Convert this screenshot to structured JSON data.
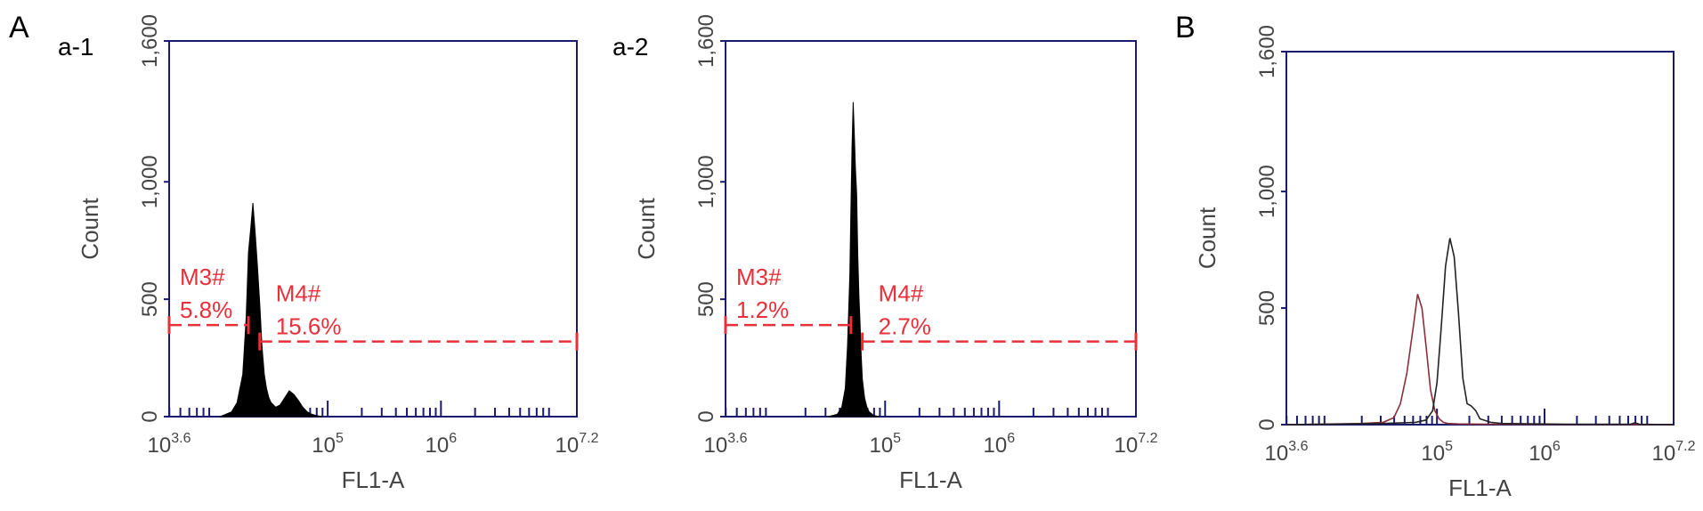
{
  "figure": {
    "panel_labels": [
      "A",
      "B"
    ],
    "colors": {
      "axis": "#1a1a6e",
      "gate": "#e8303a",
      "fill": "#000000",
      "curve_b_1": "#8a2f3a",
      "curve_b_2": "#222222"
    }
  },
  "chart_data": [
    {
      "type": "area",
      "panel_label": "a-1",
      "xlabel": "FL1-A",
      "ylabel": "Count",
      "x_scale": "log10",
      "xlim": [
        3.6,
        7.2
      ],
      "ylim": [
        0,
        1600
      ],
      "yticks": [
        0,
        500,
        1000,
        1600
      ],
      "ytick_labels": [
        "0",
        "500",
        "1,000",
        "1,600"
      ],
      "xticks": [
        3.6,
        5,
        6,
        7.2
      ],
      "xtick_labels": [
        {
          "base": "10",
          "exp": "3.6"
        },
        {
          "base": "10",
          "exp": "5"
        },
        {
          "base": "10",
          "exp": "6"
        },
        {
          "base": "10",
          "exp": "7.2"
        }
      ],
      "series": [
        {
          "x": [
            4.05,
            4.15,
            4.2,
            4.25,
            4.28,
            4.3,
            4.32,
            4.34,
            4.36,
            4.38,
            4.4,
            4.42,
            4.44,
            4.46,
            4.48,
            4.5,
            4.54,
            4.58,
            4.62,
            4.66,
            4.7,
            4.74,
            4.78,
            4.82,
            4.86,
            4.9,
            4.95
          ],
          "y": [
            0,
            20,
            60,
            180,
            420,
            700,
            800,
            910,
            780,
            640,
            480,
            300,
            180,
            120,
            80,
            60,
            40,
            50,
            80,
            110,
            95,
            70,
            40,
            20,
            10,
            5,
            0
          ]
        }
      ],
      "gates": [
        {
          "name": "M3#",
          "percent": "5.8%",
          "x_start": 3.6,
          "x_end": 4.3,
          "y": 390
        },
        {
          "name": "M4#",
          "percent": "15.6%",
          "x_start": 4.4,
          "x_end": 7.2,
          "y": 320
        }
      ]
    },
    {
      "type": "area",
      "panel_label": "a-2",
      "xlabel": "FL1-A",
      "ylabel": "Count",
      "x_scale": "log10",
      "xlim": [
        3.6,
        7.2
      ],
      "ylim": [
        0,
        1600
      ],
      "yticks": [
        0,
        500,
        1000,
        1600
      ],
      "ytick_labels": [
        "0",
        "500",
        "1,000",
        "1,600"
      ],
      "xticks": [
        3.6,
        5,
        6,
        7.2
      ],
      "xtick_labels": [
        {
          "base": "10",
          "exp": "3.6"
        },
        {
          "base": "10",
          "exp": "5"
        },
        {
          "base": "10",
          "exp": "6"
        },
        {
          "base": "10",
          "exp": "7.2"
        }
      ],
      "series": [
        {
          "x": [
            4.5,
            4.58,
            4.62,
            4.65,
            4.67,
            4.69,
            4.7,
            4.71,
            4.72,
            4.73,
            4.74,
            4.75,
            4.76,
            4.77,
            4.78,
            4.79,
            4.8,
            4.82,
            4.84,
            4.86,
            4.9,
            4.95
          ],
          "y": [
            0,
            10,
            40,
            120,
            300,
            600,
            900,
            1150,
            1340,
            1200,
            1050,
            950,
            700,
            520,
            400,
            260,
            160,
            80,
            40,
            20,
            5,
            0
          ]
        }
      ],
      "gates": [
        {
          "name": "M3#",
          "percent": "1.2%",
          "x_start": 3.6,
          "x_end": 4.7,
          "y": 390
        },
        {
          "name": "M4#",
          "percent": "2.7%",
          "x_start": 4.8,
          "x_end": 7.2,
          "y": 320
        }
      ]
    },
    {
      "type": "line",
      "panel_label": "",
      "xlabel": "FL1-A",
      "ylabel": "Count",
      "x_scale": "log10",
      "xlim": [
        3.6,
        7.2
      ],
      "ylim": [
        0,
        1600
      ],
      "yticks": [
        0,
        500,
        1000,
        1600
      ],
      "ytick_labels": [
        "0",
        "500",
        "1,000",
        "1,600"
      ],
      "xticks": [
        3.6,
        5,
        6,
        7.2
      ],
      "xtick_labels": [
        {
          "base": "10",
          "exp": "3.6"
        },
        {
          "base": "10",
          "exp": "5"
        },
        {
          "base": "10",
          "exp": "6"
        },
        {
          "base": "10",
          "exp": "7.2"
        }
      ],
      "series": [
        {
          "x": [
            3.6,
            4.3,
            4.5,
            4.6,
            4.66,
            4.72,
            4.78,
            4.82,
            4.86,
            4.9,
            4.94,
            4.98,
            5.02,
            5.06,
            5.1,
            5.2,
            5.5,
            6.2,
            7.2
          ],
          "y": [
            0,
            5,
            10,
            30,
            90,
            220,
            420,
            560,
            500,
            330,
            150,
            60,
            25,
            10,
            5,
            3,
            2,
            1,
            0
          ]
        },
        {
          "x": [
            3.6,
            4.5,
            4.8,
            4.9,
            4.96,
            5.0,
            5.04,
            5.08,
            5.12,
            5.16,
            5.2,
            5.24,
            5.28,
            5.32,
            5.36,
            5.4,
            5.5,
            5.6,
            6.2,
            6.8,
            6.84,
            6.88,
            7.2
          ],
          "y": [
            0,
            5,
            10,
            20,
            60,
            180,
            420,
            680,
            800,
            720,
            480,
            200,
            90,
            80,
            60,
            25,
            10,
            5,
            2,
            2,
            8,
            2,
            0
          ]
        }
      ],
      "gates": []
    }
  ]
}
